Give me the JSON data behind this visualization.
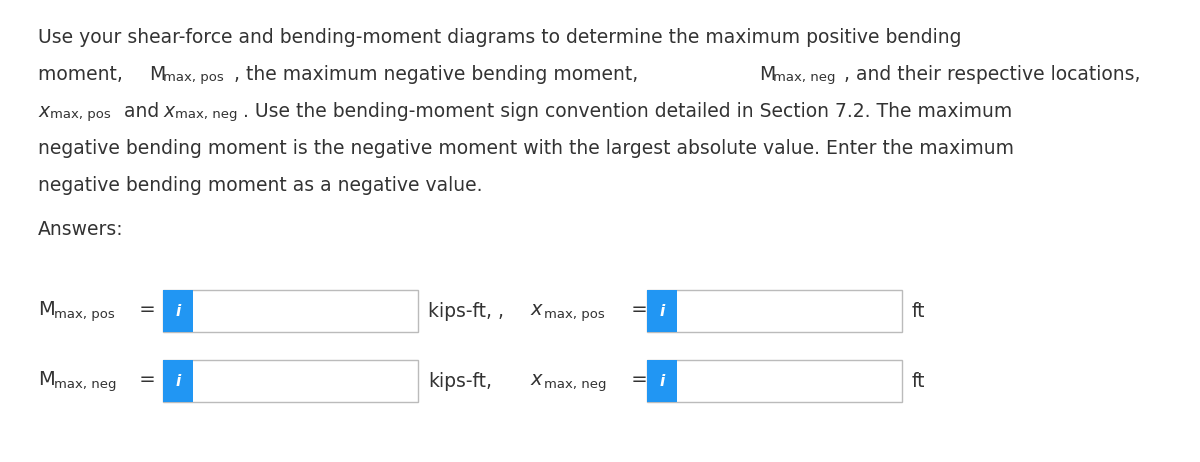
{
  "background_color": "#ffffff",
  "text_color": "#333333",
  "dark_text": "#2d2d2d",
  "info_button_color": "#2196F3",
  "line1": "Use your shear-force and bending-moment diagrams to determine the maximum positive bending",
  "line2a": "moment, ",
  "line2b": ", the maximum negative bending moment, ",
  "line2c": ", and their respective locations,",
  "line3a": " and ",
  "line3b": ". Use the bending-moment sign convention detailed in Section 7.2. The maximum",
  "line4": "negative bending moment is the negative moment with the largest absolute value. Enter the maximum",
  "line5": "negative bending moment as a negative value.",
  "answers": "Answers:",
  "kips_ft_pos": "kips-ft, ,",
  "kips_ft_neg": "kips-ft,",
  "ft": "ft",
  "fs_body": 13.5,
  "fs_sub": 9.5,
  "fs_label_main": 14,
  "fs_label_sub": 9.5,
  "fs_answers": 13.5
}
